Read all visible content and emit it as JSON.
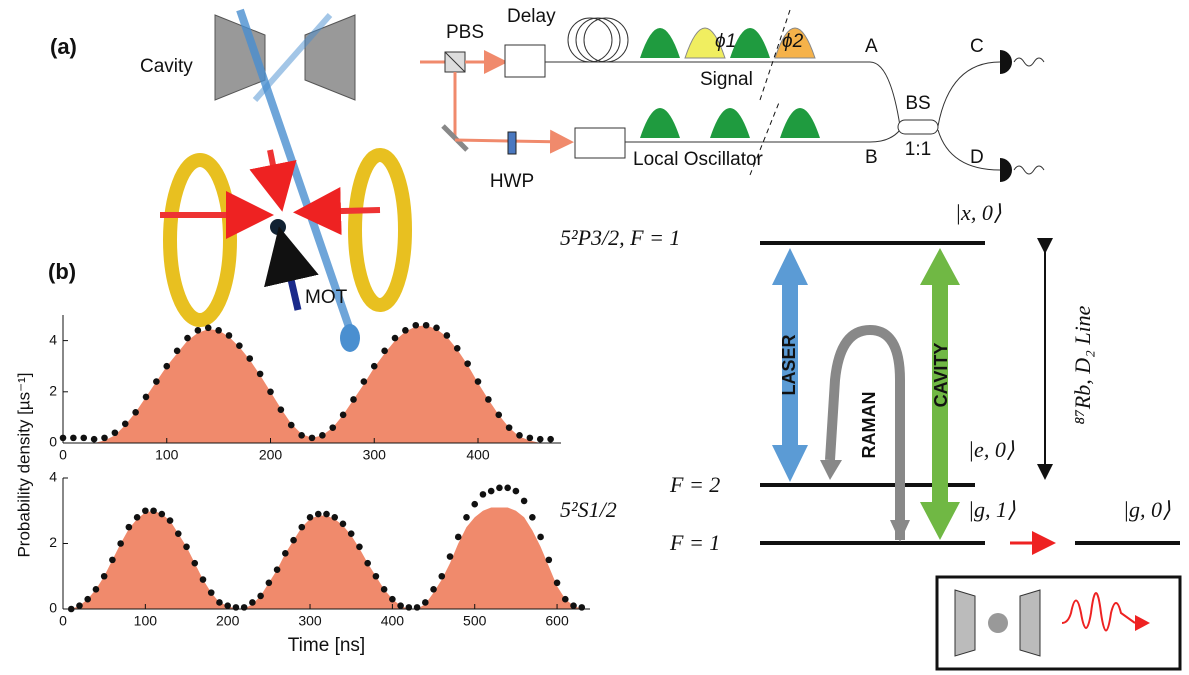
{
  "panel_labels": [
    "(a)",
    "(b)"
  ],
  "setup": {
    "cavity": "Cavity",
    "mot": "MOT",
    "pbs": "PBS",
    "delay": "Delay",
    "hwp": "HWP",
    "signal": "Signal",
    "local_oscillator": "Local Oscillator",
    "phi1": "ϕ1",
    "phi2": "ϕ2",
    "port_a": "A",
    "port_b": "B",
    "port_c": "C",
    "port_d": "D",
    "bs": "BS",
    "ratio": "1:1"
  },
  "levels": {
    "p_state": "5²P3/2, F = 1",
    "s_state": "5²S1/2",
    "f2": "F = 2",
    "f1": "F = 1",
    "x0": "|x, 0⟩",
    "e0": "|e, 0⟩",
    "g1": "|g, 1⟩",
    "g0": "|g, 0⟩",
    "laser": "LASER",
    "raman": "RAMAN",
    "cavity": "CAVITY",
    "line": "⁸⁷Rb, D₂ Line"
  },
  "shared_ylabel": "Probability density [µs⁻¹]",
  "chart_data": [
    {
      "type": "area",
      "x": [
        0,
        10,
        20,
        30,
        40,
        50,
        60,
        70,
        80,
        90,
        100,
        110,
        120,
        130,
        140,
        150,
        160,
        170,
        180,
        190,
        200,
        210,
        220,
        230,
        240,
        250,
        260,
        270,
        280,
        290,
        300,
        310,
        320,
        330,
        340,
        350,
        360,
        370,
        380,
        390,
        400,
        410,
        420,
        430,
        440,
        450,
        460,
        470
      ],
      "series": [
        {
          "kind": "area",
          "color": "#f08a6c",
          "values": [
            0,
            0,
            0,
            0,
            0.1,
            0.3,
            0.7,
            1.2,
            1.8,
            2.4,
            3.0,
            3.5,
            4.0,
            4.3,
            4.45,
            4.4,
            4.15,
            3.75,
            3.25,
            2.65,
            2.0,
            1.35,
            0.75,
            0.35,
            0.2,
            0.3,
            0.6,
            1.1,
            1.7,
            2.3,
            2.95,
            3.5,
            4.0,
            4.35,
            4.55,
            4.6,
            4.45,
            4.15,
            3.65,
            3.05,
            2.35,
            1.7,
            1.1,
            0.6,
            0.25,
            0.1,
            0,
            0
          ]
        },
        {
          "kind": "dots",
          "color": "#111111",
          "values": [
            0.2,
            0.2,
            0.2,
            0.15,
            0.2,
            0.4,
            0.75,
            1.2,
            1.8,
            2.4,
            3.0,
            3.6,
            4.1,
            4.4,
            4.5,
            4.4,
            4.2,
            3.8,
            3.3,
            2.7,
            2.0,
            1.3,
            0.7,
            0.3,
            0.2,
            0.3,
            0.6,
            1.1,
            1.7,
            2.4,
            3.0,
            3.6,
            4.1,
            4.4,
            4.6,
            4.6,
            4.5,
            4.2,
            3.7,
            3.1,
            2.4,
            1.7,
            1.1,
            0.6,
            0.3,
            0.2,
            0.15,
            0.15
          ]
        }
      ],
      "xlim": [
        0,
        480
      ],
      "ylim": [
        0,
        5
      ],
      "xticks": [
        0,
        100,
        200,
        300,
        400
      ],
      "yticks": [
        0,
        2,
        4
      ]
    },
    {
      "type": "area",
      "xlabel": "Time [ns]",
      "x": [
        10,
        20,
        30,
        40,
        50,
        60,
        70,
        80,
        90,
        100,
        110,
        120,
        130,
        140,
        150,
        160,
        170,
        180,
        190,
        200,
        210,
        220,
        230,
        240,
        250,
        260,
        270,
        280,
        290,
        300,
        310,
        320,
        330,
        340,
        350,
        360,
        370,
        380,
        390,
        400,
        410,
        420,
        430,
        440,
        450,
        460,
        470,
        480,
        490,
        500,
        510,
        520,
        530,
        540,
        550,
        560,
        570,
        580,
        590,
        600,
        610,
        620,
        630
      ],
      "series": [
        {
          "kind": "area",
          "color": "#f08a6c",
          "values": [
            0,
            0.1,
            0.3,
            0.6,
            1.0,
            1.5,
            2.0,
            2.45,
            2.75,
            2.95,
            3.0,
            2.9,
            2.7,
            2.3,
            1.9,
            1.4,
            0.9,
            0.5,
            0.2,
            0.1,
            0,
            0,
            0.15,
            0.4,
            0.8,
            1.2,
            1.7,
            2.1,
            2.5,
            2.75,
            2.85,
            2.85,
            2.75,
            2.55,
            2.25,
            1.85,
            1.4,
            1.0,
            0.6,
            0.3,
            0.1,
            0,
            0,
            0.15,
            0.5,
            0.9,
            1.4,
            2.0,
            2.5,
            2.8,
            3.0,
            3.1,
            3.1,
            3.1,
            3.0,
            2.8,
            2.4,
            1.9,
            1.3,
            0.7,
            0.3,
            0.1,
            0
          ]
        },
        {
          "kind": "dots",
          "color": "#111111",
          "values": [
            0,
            0.1,
            0.3,
            0.6,
            1.0,
            1.5,
            2.0,
            2.5,
            2.8,
            3.0,
            3.0,
            2.9,
            2.7,
            2.3,
            1.9,
            1.4,
            0.9,
            0.5,
            0.2,
            0.1,
            0.05,
            0.05,
            0.2,
            0.4,
            0.8,
            1.2,
            1.7,
            2.1,
            2.5,
            2.8,
            2.9,
            2.9,
            2.8,
            2.6,
            2.3,
            1.9,
            1.4,
            1.0,
            0.6,
            0.3,
            0.1,
            0.05,
            0.05,
            0.2,
            0.6,
            1.0,
            1.6,
            2.2,
            2.8,
            3.2,
            3.5,
            3.6,
            3.7,
            3.7,
            3.6,
            3.3,
            2.8,
            2.2,
            1.5,
            0.8,
            0.3,
            0.1,
            0.05
          ]
        }
      ],
      "xlim": [
        0,
        640
      ],
      "ylim": [
        0,
        4
      ],
      "xticks": [
        0,
        100,
        200,
        300,
        400,
        500,
        600
      ],
      "yticks": [
        0,
        2,
        4
      ]
    }
  ]
}
